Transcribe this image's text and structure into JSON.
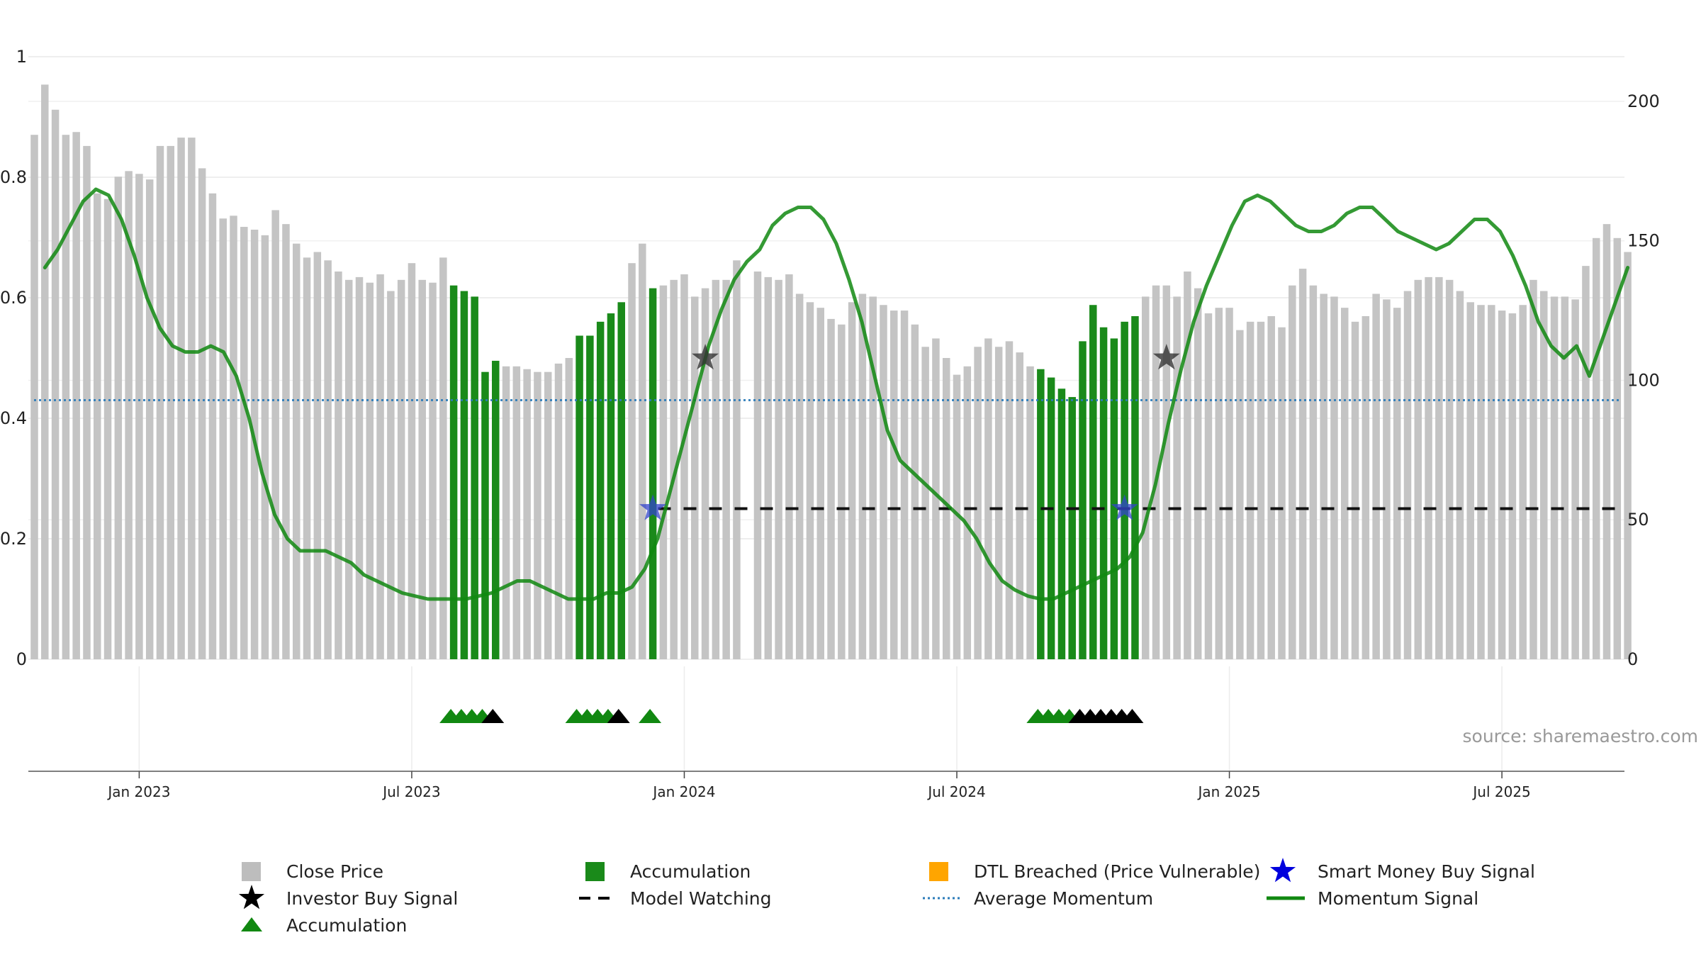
{
  "source_text": "source: sharemaestro.com",
  "legend": [
    {
      "label": "Close Price",
      "symbol": "square",
      "color": "#bdbdbd"
    },
    {
      "label": "Accumulation",
      "symbol": "square",
      "color": "#1a8a1a"
    },
    {
      "label": "DTL Breached (Price Vulnerable)",
      "symbol": "square",
      "color": "#ffa500"
    },
    {
      "label": "Smart Money Buy Signal",
      "symbol": "star",
      "color": "#0000dd"
    },
    {
      "label": "Investor Buy Signal",
      "symbol": "star",
      "color": "#000000"
    },
    {
      "label": "Model Watching",
      "symbol": "dash",
      "color": "#000000"
    },
    {
      "label": "Average Momentum",
      "symbol": "dotted",
      "color": "#2b7bb9"
    },
    {
      "label": "Momentum Signal",
      "symbol": "line",
      "color": "#118811"
    },
    {
      "label": "Accumulation",
      "symbol": "triangle",
      "color": "#118811"
    }
  ],
  "chart_data": {
    "type": "bar",
    "x_tick_labels": [
      "Jan 2023",
      "Jul 2023",
      "Jan 2024",
      "Jul 2024",
      "Jan 2025",
      "Jul 2025"
    ],
    "x_tick_weeks": [
      10,
      36,
      62,
      88,
      114,
      140
    ],
    "left_axis": {
      "ticks": [
        "0",
        "0.2",
        "0.4",
        "0.6",
        "0.8",
        "1"
      ],
      "values": [
        0,
        0.2,
        0.4,
        0.6,
        0.8,
        1
      ],
      "range": [
        0,
        1
      ]
    },
    "right_axis": {
      "ticks": [
        "0",
        "50",
        "100",
        "150",
        "200"
      ],
      "values": [
        0,
        50,
        100,
        150,
        200
      ],
      "range": [
        0,
        216
      ]
    },
    "close_price": [
      [
        0,
        188,
        "g"
      ],
      [
        1,
        206,
        "g"
      ],
      [
        2,
        197,
        "g"
      ],
      [
        3,
        188,
        "g"
      ],
      [
        4,
        189,
        "g"
      ],
      [
        5,
        184,
        "g"
      ],
      [
        6,
        167,
        "g"
      ],
      [
        7,
        165,
        "g"
      ],
      [
        8,
        173,
        "g"
      ],
      [
        9,
        175,
        "g"
      ],
      [
        10,
        174,
        "g"
      ],
      [
        11,
        172,
        "g"
      ],
      [
        12,
        184,
        "g"
      ],
      [
        13,
        184,
        "g"
      ],
      [
        14,
        187,
        "g"
      ],
      [
        15,
        187,
        "g"
      ],
      [
        16,
        176,
        "g"
      ],
      [
        17,
        167,
        "g"
      ],
      [
        18,
        158,
        "g"
      ],
      [
        19,
        159,
        "g"
      ],
      [
        20,
        155,
        "g"
      ],
      [
        21,
        154,
        "g"
      ],
      [
        22,
        152,
        "g"
      ],
      [
        23,
        161,
        "g"
      ],
      [
        24,
        156,
        "g"
      ],
      [
        25,
        149,
        "g"
      ],
      [
        26,
        144,
        "g"
      ],
      [
        27,
        146,
        "g"
      ],
      [
        28,
        143,
        "g"
      ],
      [
        29,
        139,
        "g"
      ],
      [
        30,
        136,
        "g"
      ],
      [
        31,
        137,
        "g"
      ],
      [
        32,
        135,
        "g"
      ],
      [
        33,
        138,
        "g"
      ],
      [
        34,
        132,
        "g"
      ],
      [
        35,
        136,
        "g"
      ],
      [
        36,
        142,
        "g"
      ],
      [
        37,
        136,
        "g"
      ],
      [
        38,
        135,
        "g"
      ],
      [
        39,
        144,
        "g"
      ],
      [
        40,
        134,
        "a"
      ],
      [
        41,
        132,
        "a"
      ],
      [
        42,
        130,
        "a"
      ],
      [
        43,
        103,
        "a"
      ],
      [
        44,
        107,
        "a"
      ],
      [
        45,
        105,
        "g"
      ],
      [
        46,
        105,
        "g"
      ],
      [
        47,
        104,
        "g"
      ],
      [
        48,
        103,
        "g"
      ],
      [
        49,
        103,
        "g"
      ],
      [
        50,
        106,
        "g"
      ],
      [
        51,
        108,
        "g"
      ],
      [
        52,
        116,
        "a"
      ],
      [
        53,
        116,
        "a"
      ],
      [
        54,
        121,
        "a"
      ],
      [
        55,
        124,
        "a"
      ],
      [
        56,
        128,
        "a"
      ],
      [
        57,
        142,
        "g"
      ],
      [
        58,
        149,
        "g"
      ],
      [
        59,
        133,
        "a"
      ],
      [
        60,
        134,
        "g"
      ],
      [
        61,
        136,
        "g"
      ],
      [
        62,
        138,
        "g"
      ],
      [
        63,
        130,
        "g"
      ],
      [
        64,
        133,
        "g"
      ],
      [
        65,
        136,
        "g"
      ],
      [
        66,
        136,
        "g"
      ],
      [
        67,
        143,
        "g"
      ],
      [
        69,
        139,
        "g"
      ],
      [
        70,
        137,
        "g"
      ],
      [
        71,
        136,
        "g"
      ],
      [
        72,
        138,
        "g"
      ],
      [
        73,
        131,
        "g"
      ],
      [
        74,
        128,
        "g"
      ],
      [
        75,
        126,
        "g"
      ],
      [
        76,
        122,
        "g"
      ],
      [
        77,
        120,
        "g"
      ],
      [
        78,
        128,
        "g"
      ],
      [
        79,
        131,
        "g"
      ],
      [
        80,
        130,
        "g"
      ],
      [
        81,
        127,
        "g"
      ],
      [
        82,
        125,
        "g"
      ],
      [
        83,
        125,
        "g"
      ],
      [
        84,
        120,
        "g"
      ],
      [
        85,
        112,
        "g"
      ],
      [
        86,
        115,
        "g"
      ],
      [
        87,
        108,
        "g"
      ],
      [
        88,
        102,
        "g"
      ],
      [
        89,
        105,
        "g"
      ],
      [
        90,
        112,
        "g"
      ],
      [
        91,
        115,
        "g"
      ],
      [
        92,
        112,
        "g"
      ],
      [
        93,
        114,
        "g"
      ],
      [
        94,
        110,
        "g"
      ],
      [
        95,
        105,
        "g"
      ],
      [
        96,
        104,
        "a"
      ],
      [
        97,
        101,
        "a"
      ],
      [
        98,
        97,
        "a"
      ],
      [
        99,
        94,
        "a"
      ],
      [
        100,
        114,
        "a"
      ],
      [
        101,
        127,
        "a"
      ],
      [
        102,
        119,
        "a"
      ],
      [
        103,
        115,
        "a"
      ],
      [
        104,
        121,
        "a"
      ],
      [
        105,
        123,
        "a"
      ],
      [
        106,
        130,
        "g"
      ],
      [
        107,
        134,
        "g"
      ],
      [
        108,
        134,
        "g"
      ],
      [
        109,
        130,
        "g"
      ],
      [
        110,
        139,
        "g"
      ],
      [
        111,
        133,
        "g"
      ],
      [
        112,
        124,
        "g"
      ],
      [
        113,
        126,
        "g"
      ],
      [
        114,
        126,
        "g"
      ],
      [
        115,
        118,
        "g"
      ],
      [
        116,
        121,
        "g"
      ],
      [
        117,
        121,
        "g"
      ],
      [
        118,
        123,
        "g"
      ],
      [
        119,
        119,
        "g"
      ],
      [
        120,
        134,
        "g"
      ],
      [
        121,
        140,
        "g"
      ],
      [
        122,
        134,
        "g"
      ],
      [
        123,
        131,
        "g"
      ],
      [
        124,
        130,
        "g"
      ],
      [
        125,
        126,
        "g"
      ],
      [
        126,
        121,
        "g"
      ],
      [
        127,
        123,
        "g"
      ],
      [
        128,
        131,
        "g"
      ],
      [
        129,
        129,
        "g"
      ],
      [
        130,
        126,
        "g"
      ],
      [
        131,
        132,
        "g"
      ],
      [
        132,
        136,
        "g"
      ],
      [
        133,
        137,
        "g"
      ],
      [
        134,
        137,
        "g"
      ],
      [
        135,
        136,
        "g"
      ],
      [
        136,
        132,
        "g"
      ],
      [
        137,
        128,
        "g"
      ],
      [
        138,
        127,
        "g"
      ],
      [
        139,
        127,
        "g"
      ],
      [
        140,
        125,
        "g"
      ],
      [
        141,
        124,
        "g"
      ],
      [
        142,
        127,
        "g"
      ],
      [
        143,
        136,
        "g"
      ],
      [
        144,
        132,
        "g"
      ],
      [
        145,
        130,
        "g"
      ],
      [
        146,
        130,
        "g"
      ],
      [
        147,
        129,
        "g"
      ],
      [
        148,
        141,
        "g"
      ],
      [
        149,
        151,
        "g"
      ],
      [
        150,
        156,
        "g"
      ],
      [
        151,
        151,
        "g"
      ],
      [
        152,
        146,
        "g"
      ]
    ],
    "momentum_signal": [
      [
        0,
        0.65
      ],
      [
        1,
        0.68
      ],
      [
        2,
        0.72
      ],
      [
        3,
        0.76
      ],
      [
        4,
        0.78
      ],
      [
        5,
        0.77
      ],
      [
        6,
        0.73
      ],
      [
        7,
        0.67
      ],
      [
        8,
        0.6
      ],
      [
        9,
        0.55
      ],
      [
        10,
        0.52
      ],
      [
        11,
        0.51
      ],
      [
        12,
        0.51
      ],
      [
        13,
        0.52
      ],
      [
        14,
        0.51
      ],
      [
        15,
        0.47
      ],
      [
        16,
        0.4
      ],
      [
        17,
        0.31
      ],
      [
        18,
        0.24
      ],
      [
        19,
        0.2
      ],
      [
        20,
        0.18
      ],
      [
        21,
        0.18
      ],
      [
        22,
        0.18
      ],
      [
        23,
        0.17
      ],
      [
        24,
        0.16
      ],
      [
        25,
        0.14
      ],
      [
        26,
        0.13
      ],
      [
        27,
        0.12
      ],
      [
        28,
        0.11
      ],
      [
        29,
        0.105
      ],
      [
        30,
        0.1
      ],
      [
        31,
        0.1
      ],
      [
        32,
        0.1
      ],
      [
        33,
        0.1
      ],
      [
        34,
        0.105
      ],
      [
        35,
        0.11
      ],
      [
        36,
        0.12
      ],
      [
        37,
        0.13
      ],
      [
        38,
        0.13
      ],
      [
        39,
        0.12
      ],
      [
        40,
        0.11
      ],
      [
        41,
        0.1
      ],
      [
        42,
        0.1
      ],
      [
        43,
        0.1
      ],
      [
        44,
        0.11
      ],
      [
        45,
        0.11
      ],
      [
        46,
        0.12
      ],
      [
        47,
        0.15
      ],
      [
        48,
        0.2
      ],
      [
        49,
        0.28
      ],
      [
        50,
        0.36
      ],
      [
        51,
        0.44
      ],
      [
        52,
        0.52
      ],
      [
        53,
        0.58
      ],
      [
        54,
        0.63
      ],
      [
        55,
        0.66
      ],
      [
        56,
        0.68
      ],
      [
        57,
        0.72
      ],
      [
        58,
        0.74
      ],
      [
        59,
        0.75
      ],
      [
        60,
        0.75
      ],
      [
        61,
        0.73
      ],
      [
        62,
        0.69
      ],
      [
        63,
        0.63
      ],
      [
        64,
        0.56
      ],
      [
        65,
        0.47
      ],
      [
        66,
        0.38
      ],
      [
        67,
        0.33
      ],
      [
        68,
        0.31
      ],
      [
        69,
        0.29
      ],
      [
        70,
        0.27
      ],
      [
        71,
        0.25
      ],
      [
        72,
        0.23
      ],
      [
        73,
        0.2
      ],
      [
        74,
        0.16
      ],
      [
        75,
        0.13
      ],
      [
        76,
        0.115
      ],
      [
        77,
        0.105
      ],
      [
        78,
        0.1
      ],
      [
        79,
        0.1
      ],
      [
        80,
        0.11
      ],
      [
        81,
        0.12
      ],
      [
        82,
        0.13
      ],
      [
        83,
        0.14
      ],
      [
        84,
        0.15
      ],
      [
        85,
        0.17
      ],
      [
        86,
        0.21
      ],
      [
        87,
        0.29
      ],
      [
        88,
        0.39
      ],
      [
        89,
        0.48
      ],
      [
        90,
        0.56
      ],
      [
        91,
        0.62
      ],
      [
        92,
        0.67
      ],
      [
        93,
        0.72
      ],
      [
        94,
        0.76
      ],
      [
        95,
        0.77
      ],
      [
        96,
        0.76
      ],
      [
        97,
        0.74
      ],
      [
        98,
        0.72
      ],
      [
        99,
        0.71
      ],
      [
        100,
        0.71
      ],
      [
        101,
        0.72
      ],
      [
        102,
        0.74
      ],
      [
        103,
        0.75
      ],
      [
        104,
        0.75
      ],
      [
        105,
        0.73
      ],
      [
        106,
        0.71
      ],
      [
        107,
        0.7
      ],
      [
        108,
        0.69
      ],
      [
        109,
        0.68
      ],
      [
        110,
        0.69
      ],
      [
        111,
        0.71
      ],
      [
        112,
        0.73
      ],
      [
        113,
        0.73
      ],
      [
        114,
        0.71
      ],
      [
        115,
        0.67
      ],
      [
        116,
        0.62
      ],
      [
        117,
        0.56
      ],
      [
        118,
        0.52
      ],
      [
        119,
        0.5
      ],
      [
        120,
        0.52
      ],
      [
        121,
        0.47
      ],
      [
        122,
        0.53
      ],
      [
        123,
        0.59
      ],
      [
        124,
        0.65
      ]
    ],
    "momentum_x_weeks": [
      1,
      152
    ],
    "average_momentum": 0.43,
    "model_watching_level": 0.25,
    "model_watching_from_weeks": [
      59.5,
      103
    ],
    "smart_money_buy_weeks": [
      59,
      104
    ],
    "smart_money_level": 0.25,
    "investor_buy_weeks": [
      64,
      108
    ],
    "investor_level": 0.5,
    "accumulation_triangles": [
      [
        40,
        "green"
      ],
      [
        41,
        "green"
      ],
      [
        42,
        "green"
      ],
      [
        43,
        "green"
      ],
      [
        44,
        "black"
      ],
      [
        52,
        "green"
      ],
      [
        53,
        "green"
      ],
      [
        54,
        "green"
      ],
      [
        55,
        "green"
      ],
      [
        56,
        "black"
      ],
      [
        59,
        "green"
      ],
      [
        96,
        "green"
      ],
      [
        97,
        "green"
      ],
      [
        98,
        "green"
      ],
      [
        99,
        "green"
      ],
      [
        100,
        "black"
      ],
      [
        101,
        "black"
      ],
      [
        102,
        "black"
      ],
      [
        103,
        "black"
      ],
      [
        104,
        "black"
      ],
      [
        105,
        "black"
      ]
    ]
  }
}
